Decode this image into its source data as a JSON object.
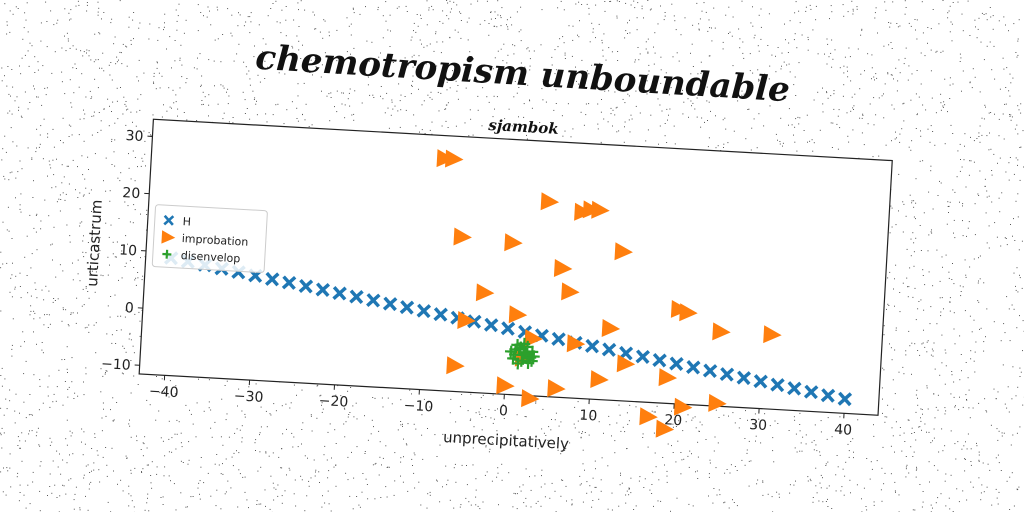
{
  "chart_data": {
    "type": "scatter",
    "title": "chemotropism unboundable",
    "subtitle": "sjambok",
    "xlabel": "unprecipitatively",
    "ylabel": "urticastrum",
    "xlim": [
      -43,
      44
    ],
    "ylim": [
      -11.5,
      33
    ],
    "xticks": [
      -40,
      -30,
      -20,
      -10,
      0,
      10,
      20,
      30,
      40
    ],
    "yticks": [
      -10,
      0,
      10,
      20,
      30
    ],
    "grid": false,
    "legend_position": "center-left",
    "series": [
      {
        "name": "H",
        "marker": "x-filled",
        "color": "#1f77b4",
        "x": [
          -40,
          -38,
          -36,
          -34,
          -32,
          -30,
          -28,
          -26,
          -24,
          -22,
          -20,
          -18,
          -16,
          -14,
          -12,
          -10,
          -8,
          -6,
          -4,
          -2,
          0,
          2,
          4,
          6,
          8,
          10,
          12,
          14,
          16,
          18,
          20,
          22,
          24,
          26,
          28,
          30,
          32,
          34,
          36,
          38,
          40
        ],
        "y": [
          9.0,
          8.55,
          8.1,
          7.65,
          7.2,
          6.75,
          6.3,
          5.85,
          5.4,
          4.95,
          4.5,
          4.05,
          3.6,
          3.15,
          2.7,
          2.25,
          1.8,
          1.35,
          0.9,
          0.45,
          0.0,
          -0.45,
          -0.9,
          -1.35,
          -1.8,
          -2.25,
          -2.7,
          -3.15,
          -3.6,
          -4.05,
          -4.5,
          -4.95,
          -5.4,
          -5.85,
          -6.3,
          -6.75,
          -7.2,
          -7.65,
          -8.1,
          -8.55,
          -9.0
        ]
      },
      {
        "name": "improbation",
        "marker": "triangle-right",
        "color": "#ff7f0e",
        "x": [
          -8.5,
          -7.5,
          4,
          8,
          9,
          10,
          -6,
          0,
          13,
          6,
          7,
          -3,
          20,
          21,
          25,
          31,
          1,
          -5,
          12,
          3,
          8,
          14,
          -6,
          2,
          11,
          19,
          0,
          3,
          6,
          21,
          25,
          17,
          19
        ],
        "y": [
          29,
          29,
          22.5,
          21,
          21.5,
          21.5,
          15.5,
          15,
          14.5,
          11,
          7,
          6,
          5,
          4.5,
          1.5,
          1.5,
          2.5,
          1,
          1,
          -1.5,
          -2,
          -5,
          -7,
          -5,
          -8,
          -7,
          -10,
          -12,
          -10,
          -12,
          -11,
          -14,
          -16
        ]
      },
      {
        "name": "disenvelop",
        "marker": "plus",
        "color": "#2ca02c",
        "x": [
          0.5,
          1.0,
          1.5,
          2.0,
          2.5,
          3.0,
          1.2,
          1.8,
          2.2,
          2.8,
          0.8,
          1.6,
          2.4,
          3.2,
          1.4,
          2.6,
          2.0,
          1.0,
          3.0,
          2.0
        ],
        "y": [
          -4.0,
          -4.5,
          -3.5,
          -4.0,
          -5.0,
          -3.8,
          -2.8,
          -5.5,
          -4.2,
          -4.8,
          -5.2,
          -3.2,
          -3.0,
          -4.6,
          -6.0,
          -5.8,
          -2.5,
          -3.6,
          -5.4,
          -4.4
        ]
      }
    ]
  }
}
